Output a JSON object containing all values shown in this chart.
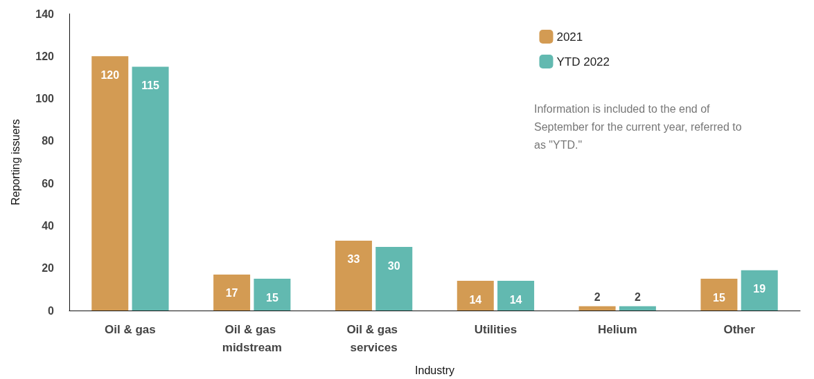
{
  "chart_data": {
    "type": "bar",
    "xlabel": "Industry",
    "ylabel": "Reporting issuers",
    "categories": [
      "Oil & gas",
      "Oil & gas midstream",
      "Oil & gas services",
      "Utilities",
      "Helium",
      "Other"
    ],
    "series": [
      {
        "name": "2021",
        "color": "#d39b53",
        "values": [
          120,
          17,
          33,
          14,
          2,
          15
        ]
      },
      {
        "name": "YTD 2022",
        "color": "#62b9b0",
        "values": [
          115,
          15,
          30,
          14,
          2,
          19
        ]
      }
    ],
    "ylim": [
      0,
      140
    ],
    "yticks": [
      0,
      20,
      40,
      60,
      80,
      100,
      120,
      140
    ],
    "grid": false,
    "legend": "top right",
    "data_labels": true,
    "annotations": [
      "Information is included to the end of September for the current year, referred to as \"YTD.\""
    ]
  }
}
